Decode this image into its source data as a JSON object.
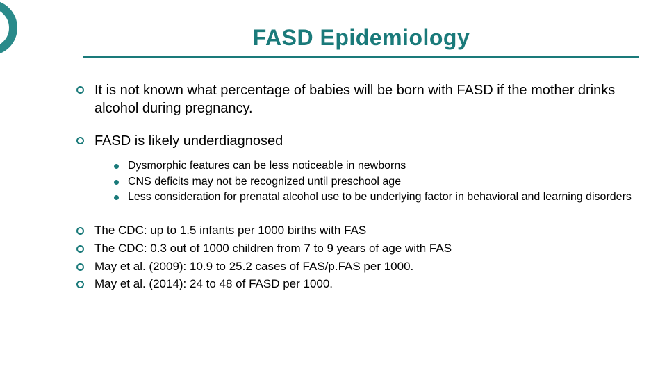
{
  "colors": {
    "accent": "#1a7a7a",
    "text": "#000000",
    "background": "#ffffff"
  },
  "title": "FASD Epidemiology",
  "bullets": {
    "b1": "It is not known what percentage of babies will be born with FASD if the mother drinks alcohol during pregnancy.",
    "b2": "FASD is likely underdiagnosed",
    "b2_sub": {
      "s1": "Dysmorphic features can be less noticeable in newborns",
      "s2": "CNS deficits may not be recognized until preschool age",
      "s3": "Less consideration for prenatal alcohol use to be underlying factor in behavioral and learning disorders"
    },
    "b3": "The CDC: up to 1.5 infants per 1000 births with FAS",
    "b4": "The CDC: 0.3 out of 1000 children from 7 to 9 years of age with FAS",
    "b5": "May et al. (2009): 10.9 to 25.2 cases of FAS/p.FAS per 1000.",
    "b6": "May et al. (2014): 24 to 48 of FASD per 1000."
  },
  "typography": {
    "title_fontsize": 32,
    "body_fontsize": 20,
    "stats_fontsize": 17,
    "sub_fontsize": 16,
    "font_family": "Verdana"
  }
}
